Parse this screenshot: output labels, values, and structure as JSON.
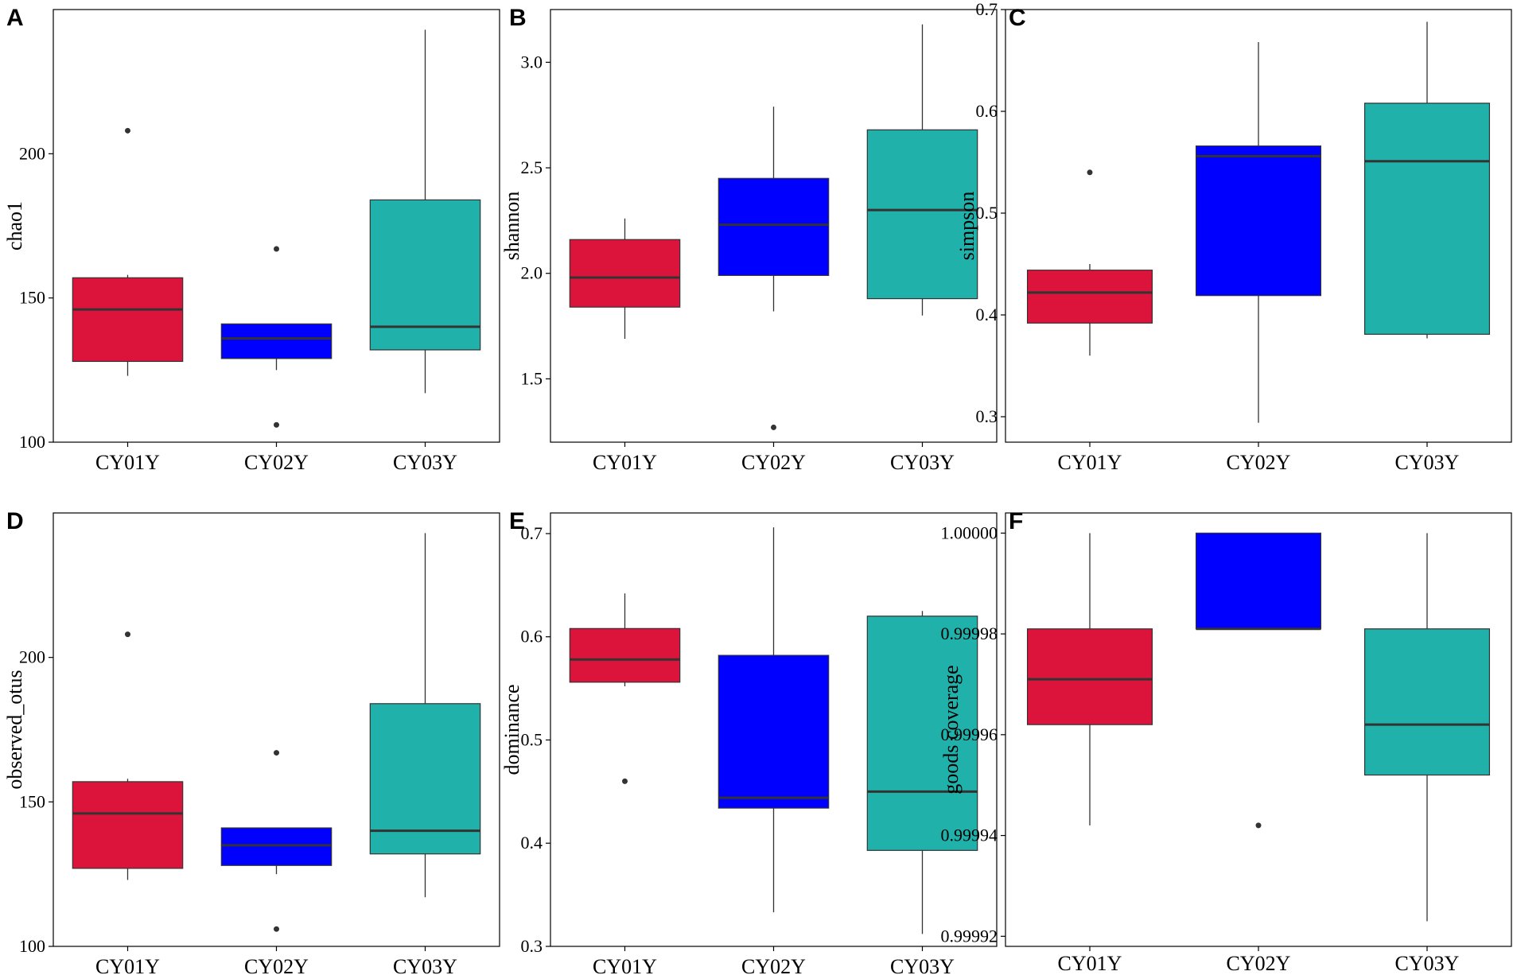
{
  "figure": {
    "description_colors": {
      "CY01Y": "#DC143C",
      "CY02Y": "#0000FF",
      "CY03Y": "#20B2AA"
    }
  },
  "chart_data": [
    {
      "panel": "A",
      "type": "box",
      "ylabel": "chao1",
      "categories": [
        "CY01Y",
        "CY02Y",
        "CY03Y"
      ],
      "ylim": [
        100,
        250
      ],
      "yticks": [
        100,
        150,
        200
      ],
      "ytick_labels": [
        "100",
        "150",
        "200"
      ],
      "boxes": [
        {
          "category": "CY01Y",
          "whisker_low": 123,
          "q1": 128,
          "median": 146,
          "q3": 157,
          "whisker_high": 158,
          "outliers": [
            208
          ],
          "color": "#DC143C"
        },
        {
          "category": "CY02Y",
          "whisker_low": 125,
          "q1": 129,
          "median": 136,
          "q3": 141,
          "whisker_high": 141,
          "outliers": [
            106,
            167
          ],
          "color": "#0000FF"
        },
        {
          "category": "CY03Y",
          "whisker_low": 117,
          "q1": 132,
          "median": 140,
          "q3": 184,
          "whisker_high": 243,
          "outliers": [],
          "color": "#20B2AA"
        }
      ]
    },
    {
      "panel": "B",
      "type": "box",
      "ylabel": "shannon",
      "categories": [
        "CY01Y",
        "CY02Y",
        "CY03Y"
      ],
      "ylim": [
        1.2,
        3.25
      ],
      "yticks": [
        1.5,
        2.0,
        2.5,
        3.0
      ],
      "ytick_labels": [
        "1.5",
        "2.0",
        "2.5",
        "3.0"
      ],
      "boxes": [
        {
          "category": "CY01Y",
          "whisker_low": 1.69,
          "q1": 1.84,
          "median": 1.98,
          "q3": 2.16,
          "whisker_high": 2.26,
          "outliers": [],
          "color": "#DC143C"
        },
        {
          "category": "CY02Y",
          "whisker_low": 1.82,
          "q1": 1.99,
          "median": 2.23,
          "q3": 2.45,
          "whisker_high": 2.79,
          "outliers": [
            1.27
          ],
          "color": "#0000FF"
        },
        {
          "category": "CY03Y",
          "whisker_low": 1.8,
          "q1": 1.88,
          "median": 2.3,
          "q3": 2.68,
          "whisker_high": 3.18,
          "outliers": [],
          "color": "#20B2AA"
        }
      ]
    },
    {
      "panel": "C",
      "type": "box",
      "ylabel": "simpson",
      "categories": [
        "CY01Y",
        "CY02Y",
        "CY03Y"
      ],
      "ylim": [
        0.275,
        0.7
      ],
      "yticks": [
        0.3,
        0.4,
        0.5,
        0.6,
        0.7
      ],
      "ytick_labels": [
        "0.3",
        "0.4",
        "0.5",
        "0.6",
        "0.7"
      ],
      "boxes": [
        {
          "category": "CY01Y",
          "whisker_low": 0.36,
          "q1": 0.392,
          "median": 0.422,
          "q3": 0.444,
          "whisker_high": 0.45,
          "outliers": [
            0.54
          ],
          "color": "#DC143C"
        },
        {
          "category": "CY02Y",
          "whisker_low": 0.294,
          "q1": 0.419,
          "median": 0.556,
          "q3": 0.566,
          "whisker_high": 0.668,
          "outliers": [],
          "color": "#0000FF"
        },
        {
          "category": "CY03Y",
          "whisker_low": 0.377,
          "q1": 0.381,
          "median": 0.551,
          "q3": 0.608,
          "whisker_high": 0.688,
          "outliers": [],
          "color": "#20B2AA"
        }
      ]
    },
    {
      "panel": "D",
      "type": "box",
      "ylabel": "observed_otus",
      "categories": [
        "CY01Y",
        "CY02Y",
        "CY03Y"
      ],
      "ylim": [
        100,
        250
      ],
      "yticks": [
        100,
        150,
        200
      ],
      "ytick_labels": [
        "100",
        "150",
        "200"
      ],
      "boxes": [
        {
          "category": "CY01Y",
          "whisker_low": 123,
          "q1": 127,
          "median": 146,
          "q3": 157,
          "whisker_high": 158,
          "outliers": [
            208
          ],
          "color": "#DC143C"
        },
        {
          "category": "CY02Y",
          "whisker_low": 125,
          "q1": 128,
          "median": 135,
          "q3": 141,
          "whisker_high": 141,
          "outliers": [
            106,
            167
          ],
          "color": "#0000FF"
        },
        {
          "category": "CY03Y",
          "whisker_low": 117,
          "q1": 132,
          "median": 140,
          "q3": 184,
          "whisker_high": 243,
          "outliers": [],
          "color": "#20B2AA"
        }
      ]
    },
    {
      "panel": "E",
      "type": "box",
      "ylabel": "dominance",
      "categories": [
        "CY01Y",
        "CY02Y",
        "CY03Y"
      ],
      "ylim": [
        0.3,
        0.72
      ],
      "yticks": [
        0.3,
        0.4,
        0.5,
        0.6,
        0.7
      ],
      "ytick_labels": [
        "0.3",
        "0.4",
        "0.5",
        "0.6",
        "0.7"
      ],
      "boxes": [
        {
          "category": "CY01Y",
          "whisker_low": 0.552,
          "q1": 0.556,
          "median": 0.578,
          "q3": 0.608,
          "whisker_high": 0.642,
          "outliers": [
            0.46
          ],
          "color": "#DC143C"
        },
        {
          "category": "CY02Y",
          "whisker_low": 0.333,
          "q1": 0.434,
          "median": 0.444,
          "q3": 0.582,
          "whisker_high": 0.706,
          "outliers": [],
          "color": "#0000FF"
        },
        {
          "category": "CY03Y",
          "whisker_low": 0.312,
          "q1": 0.393,
          "median": 0.45,
          "q3": 0.62,
          "whisker_high": 0.625,
          "outliers": [],
          "color": "#20B2AA"
        }
      ]
    },
    {
      "panel": "F",
      "type": "box",
      "ylabel": "goods coverage",
      "categories": [
        "CY01Y",
        "CY02Y",
        "CY03Y"
      ],
      "ylim": [
        0.999918,
        1.000004
      ],
      "yticks": [
        0.99992,
        0.99994,
        0.99996,
        0.99998,
        1.0
      ],
      "ytick_labels": [
        "0.99992",
        "0.99994",
        "0.99996",
        "0.99998",
        "1.00000"
      ],
      "boxes": [
        {
          "category": "CY01Y",
          "whisker_low": 0.999942,
          "q1": 0.999962,
          "median": 0.999971,
          "q3": 0.999981,
          "whisker_high": 1.0,
          "outliers": [],
          "color": "#DC143C"
        },
        {
          "category": "CY02Y",
          "whisker_low": 0.999981,
          "q1": 0.999981,
          "median": 0.999981,
          "q3": 1.0,
          "whisker_high": 1.0,
          "outliers": [
            0.999942
          ],
          "color": "#0000FF"
        },
        {
          "category": "CY03Y",
          "whisker_low": 0.999923,
          "q1": 0.999952,
          "median": 0.999962,
          "q3": 0.999981,
          "whisker_high": 1.0,
          "outliers": [],
          "color": "#20B2AA"
        }
      ]
    }
  ]
}
